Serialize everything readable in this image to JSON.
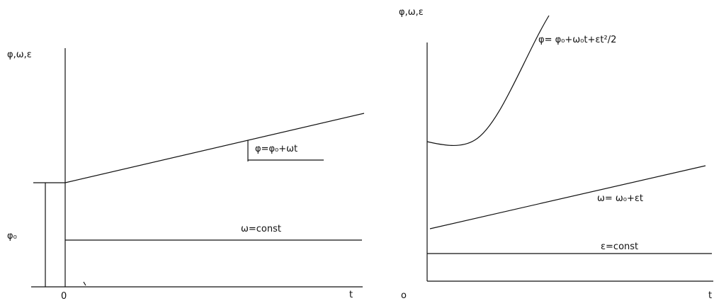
{
  "left_diagram": {
    "y_axis_label": "φ,ω,ε",
    "x_axis_label": "t",
    "origin_label": "0",
    "phi0_label": "φ₀",
    "phi_equation": "φ=φ₀+ωt",
    "omega_equation": "ω=const"
  },
  "right_diagram": {
    "y_axis_label": "φ,ω,ε",
    "x_axis_label": "t",
    "origin_label": "o",
    "phi_equation": "φ= φ₀+ω₀t+εt²/2",
    "omega_equation": "ω= ω₀+εt",
    "epsilon_equation": "ε=const"
  }
}
